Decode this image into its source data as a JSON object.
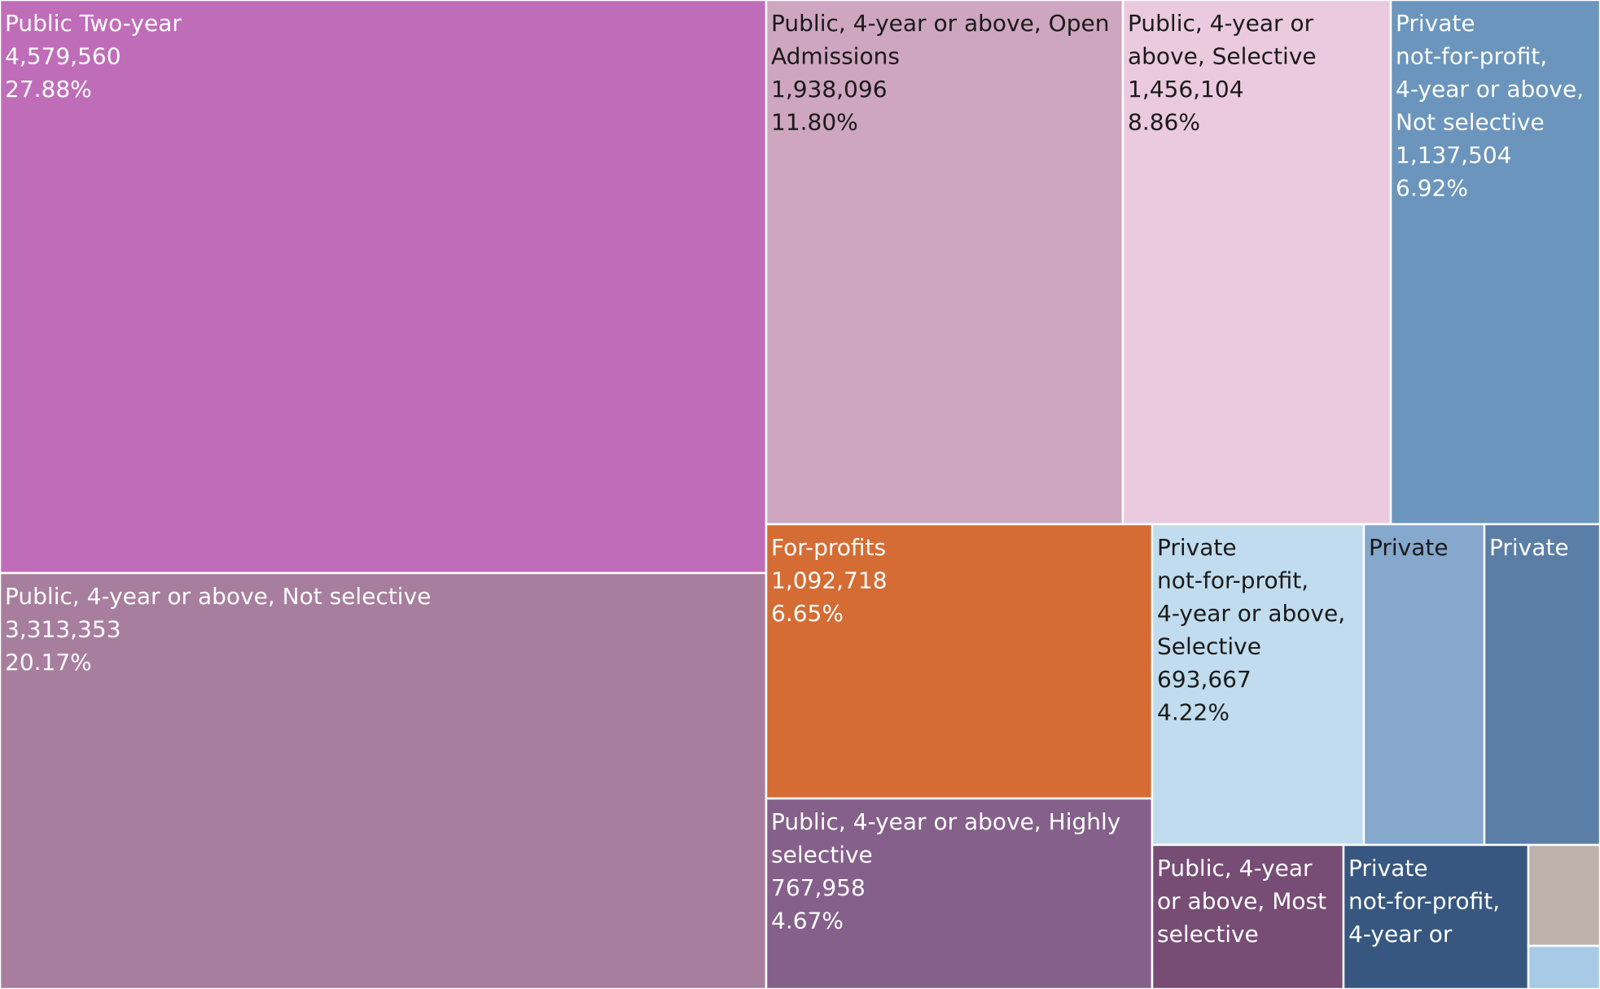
{
  "chart_data": {
    "type": "treemap",
    "title": "",
    "tiles": [
      {
        "lines": [
          "Public Two-year"
        ],
        "value_text": "4,579,560",
        "percent_text": "27.88%",
        "value": 4579560,
        "percent": 27.88,
        "color": "#C06DB9",
        "text_color": "#ffffff"
      },
      {
        "lines": [
          "Public, 4-year or above, Not selective"
        ],
        "value_text": "3,313,353",
        "percent_text": "20.17%",
        "value": 3313353,
        "percent": 20.17,
        "color": "#A87E9E",
        "text_color": "#ffffff"
      },
      {
        "lines": [
          "Public, 4-year or above, Open",
          "Admissions"
        ],
        "value_text": "1,938,096",
        "percent_text": "11.80%",
        "value": 1938096,
        "percent": 11.8,
        "color": "#CEA6C0",
        "text_color": "#1a1a1a"
      },
      {
        "lines": [
          "Public, 4-year or",
          "above, Selective"
        ],
        "value_text": "1,456,104",
        "percent_text": "8.86%",
        "value": 1456104,
        "percent": 8.86,
        "color": "#EBCAE0",
        "text_color": "#1a1a1a"
      },
      {
        "lines": [
          "Private",
          "not-for-profit,",
          "4-year or above,",
          "Not selective"
        ],
        "value_text": "1,137,504",
        "percent_text": "6.92%",
        "value": 1137504,
        "percent": 6.92,
        "color": "#6B95BC",
        "text_color": "#ffffff"
      },
      {
        "lines": [
          "For-profits"
        ],
        "value_text": "1,092,718",
        "percent_text": "6.65%",
        "value": 1092718,
        "percent": 6.65,
        "color": "#D46C34",
        "text_color": "#ffffff"
      },
      {
        "lines": [
          "Public, 4-year or above, Highly",
          "selective"
        ],
        "value_text": "767,958",
        "percent_text": "4.67%",
        "value": 767958,
        "percent": 4.67,
        "color": "#85608A",
        "text_color": "#ffffff"
      },
      {
        "lines": [
          "Private",
          "not-for-profit,",
          "4-year or above,",
          "Selective"
        ],
        "value_text": "693,667",
        "percent_text": "4.22%",
        "value": 693667,
        "percent": 4.22,
        "color": "#C0DCEE",
        "text_color": "#1a1a1a"
      },
      {
        "lines": [
          "Private"
        ],
        "value_text": "",
        "percent_text": "",
        "color": "#85A8CC",
        "text_color": "#1a1a1a"
      },
      {
        "lines": [
          "Private"
        ],
        "value_text": "",
        "percent_text": "",
        "color": "#5A7EA6",
        "text_color": "#ffffff"
      },
      {
        "lines": [
          "Public, 4-year",
          "or above, Most",
          "selective"
        ],
        "value_text": "",
        "percent_text": "",
        "color": "#774C75",
        "text_color": "#ffffff"
      },
      {
        "lines": [
          "Private",
          "not-for-profit,",
          "4-year or"
        ],
        "value_text": "",
        "percent_text": "",
        "color": "#375780",
        "text_color": "#ffffff"
      },
      {
        "lines": [],
        "value_text": "",
        "percent_text": "",
        "color": "#BDB2AC",
        "text_color": "#ffffff"
      },
      {
        "lines": [],
        "value_text": "",
        "percent_text": "",
        "color": "#A7CBE6",
        "text_color": "#ffffff"
      }
    ]
  }
}
